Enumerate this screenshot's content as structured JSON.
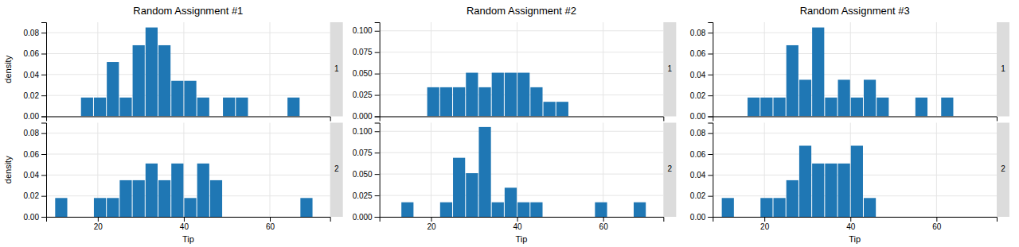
{
  "chart_data": [
    {
      "type": "histogram",
      "title": "Random Assignment #1",
      "xlabel": "Tip",
      "ylabel": "density",
      "bins": [
        10,
        13,
        16,
        19,
        22,
        25,
        28,
        31,
        34,
        37,
        40,
        43,
        46,
        49,
        52,
        55,
        58,
        61,
        64,
        67,
        70
      ],
      "xlim": [
        8,
        74
      ],
      "xticks": [
        20,
        40,
        60
      ],
      "ylim": [
        0,
        0.09
      ],
      "yticks": [
        {
          "value": 0,
          "label": "0.00"
        },
        0.02,
        0.04,
        0.06,
        0.08
      ],
      "grid": true,
      "series": [
        {
          "name": "1",
          "values": [
            0.0,
            0.0,
            0.018,
            0.018,
            0.052,
            0.018,
            0.068,
            0.085,
            0.068,
            0.034,
            0.034,
            0.018,
            0.0,
            0.018,
            0.018,
            0.0,
            0.0,
            0.0,
            0.018,
            0.0
          ]
        },
        {
          "name": "2",
          "values": [
            0.018,
            0.0,
            0.0,
            0.018,
            0.018,
            0.035,
            0.035,
            0.051,
            0.035,
            0.051,
            0.018,
            0.051,
            0.035,
            0.0,
            0.0,
            0.0,
            0.0,
            0.0,
            0.0,
            0.018
          ]
        }
      ]
    },
    {
      "type": "histogram",
      "title": "Random Assignment #2",
      "xlabel": "Tip",
      "bins": [
        10,
        13,
        16,
        19,
        22,
        25,
        28,
        31,
        34,
        37,
        40,
        43,
        46,
        49,
        52,
        55,
        58,
        61,
        64,
        67,
        70
      ],
      "xlim": [
        8,
        74
      ],
      "xticks": [
        20,
        40,
        60
      ],
      "ylim": [
        0,
        0.11
      ],
      "yticks": [
        {
          "value": 0,
          "label": "0.000"
        },
        0.025,
        {
          "value": 0.05,
          "label": "0.050"
        },
        0.075,
        {
          "value": 0.1,
          "label": "0.100"
        }
      ],
      "grid": true,
      "series": [
        {
          "name": "1",
          "values": [
            0.0,
            0.0,
            0.0,
            0.034,
            0.034,
            0.034,
            0.051,
            0.034,
            0.051,
            0.051,
            0.051,
            0.034,
            0.017,
            0.017,
            0.0,
            0.0,
            0.0,
            0.0,
            0.0,
            0.0
          ]
        },
        {
          "name": "2",
          "values": [
            0.0,
            0.017,
            0.0,
            0.0,
            0.017,
            0.069,
            0.051,
            0.105,
            0.017,
            0.034,
            0.017,
            0.017,
            0.0,
            0.0,
            0.0,
            0.0,
            0.017,
            0.0,
            0.0,
            0.017
          ]
        }
      ]
    },
    {
      "type": "histogram",
      "title": "Random Assignment #3",
      "xlabel": "Tip",
      "bins": [
        10,
        13,
        16,
        19,
        22,
        25,
        28,
        31,
        34,
        37,
        40,
        43,
        46,
        49,
        52,
        55,
        58,
        61,
        64,
        67,
        70
      ],
      "xlim": [
        8,
        74
      ],
      "xticks": [
        20,
        40,
        60
      ],
      "ylim": [
        0,
        0.09
      ],
      "yticks": [
        {
          "value": 0,
          "label": "0.00"
        },
        0.02,
        0.04,
        0.06,
        0.08
      ],
      "grid": true,
      "series": [
        {
          "name": "1",
          "values": [
            0.0,
            0.0,
            0.018,
            0.018,
            0.018,
            0.068,
            0.035,
            0.085,
            0.018,
            0.035,
            0.018,
            0.035,
            0.018,
            0.0,
            0.0,
            0.018,
            0.0,
            0.018,
            0.0,
            0.0
          ]
        },
        {
          "name": "2",
          "values": [
            0.018,
            0.0,
            0.0,
            0.018,
            0.018,
            0.035,
            0.068,
            0.051,
            0.051,
            0.051,
            0.068,
            0.018,
            0.0,
            0.0,
            0.0,
            0.0,
            0.0,
            0.0,
            0.0,
            0.0
          ]
        }
      ]
    }
  ]
}
